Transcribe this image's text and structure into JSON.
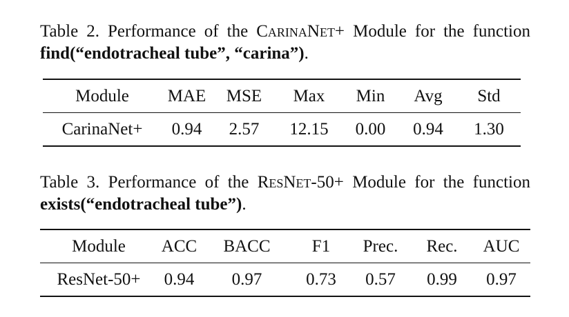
{
  "table2": {
    "caption": {
      "prefix": "Table 2. Performance of the ",
      "module_name": "CarinaNet+",
      "mid": " Module for the function ",
      "function": "find(“endotracheal tube”, “carina”)",
      "suffix": "."
    },
    "headers": [
      "Module",
      "MAE",
      "MSE",
      "Max",
      "Min",
      "Avg",
      "Std"
    ],
    "rows": [
      [
        "CarinaNet+",
        "0.94",
        "2.57",
        "12.15",
        "0.00",
        "0.94",
        "1.30"
      ]
    ]
  },
  "table3": {
    "caption": {
      "prefix": "Table 3. Performance of the ",
      "module_name": "ResNet-50+",
      "mid": " Module for the function ",
      "function": "exists(“endotracheal tube”)",
      "suffix": "."
    },
    "headers": [
      "Module",
      "ACC",
      "BACC",
      "F1",
      "Prec.",
      "Rec.",
      "AUC"
    ],
    "rows": [
      [
        "ResNet-50+",
        "0.94",
        "0.97",
        "0.73",
        "0.57",
        "0.99",
        "0.97"
      ]
    ]
  }
}
